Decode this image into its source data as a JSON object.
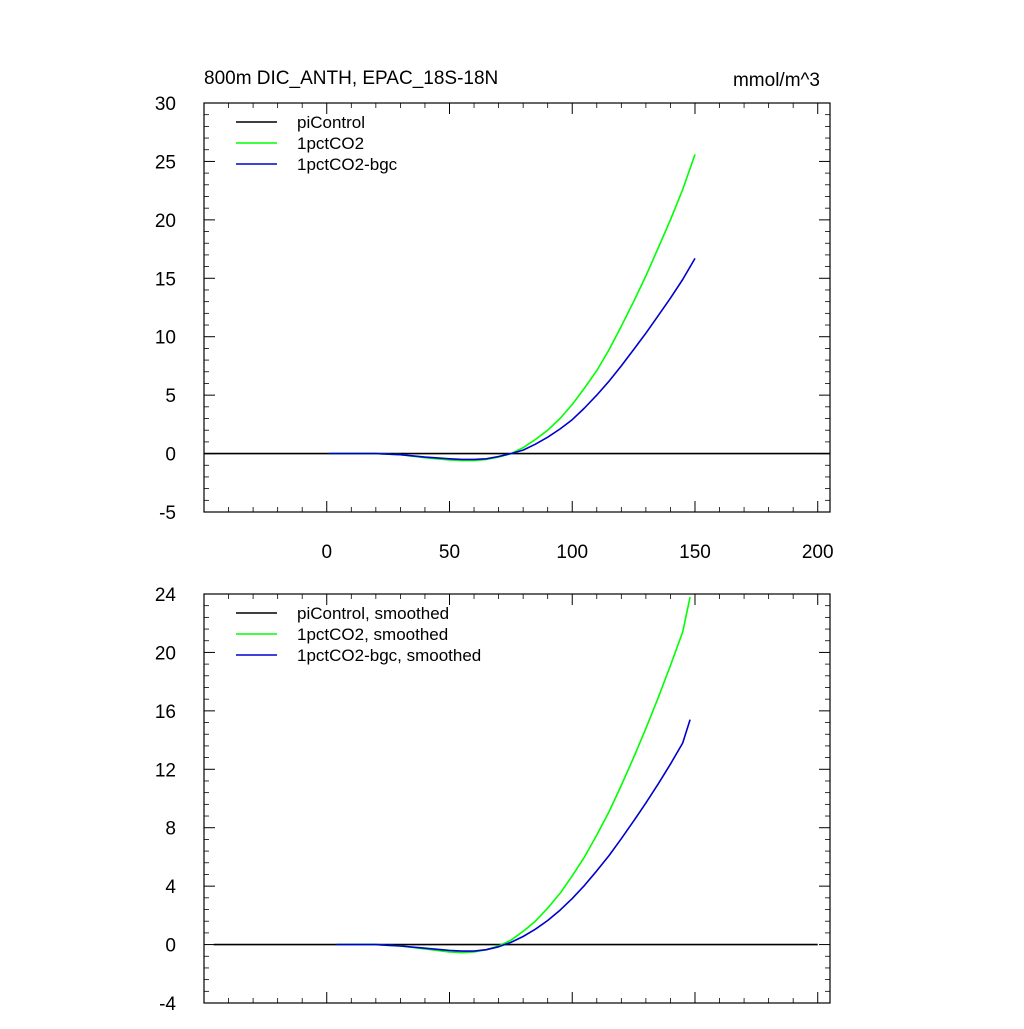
{
  "chart_data": [
    {
      "type": "line",
      "title": "800m DIC_ANTH, EPAC_18S-18N",
      "units": "mmol/m^3",
      "xlim": [
        -50,
        205
      ],
      "ylim": [
        -5,
        30
      ],
      "x_ticks": [
        0,
        50,
        100,
        150,
        200
      ],
      "y_ticks": [
        -5,
        0,
        5,
        10,
        15,
        20,
        25,
        30
      ],
      "x_tick_labels": [
        "0",
        "50",
        "100",
        "150",
        "200"
      ],
      "y_tick_labels": [
        "-5",
        "0",
        "5",
        "10",
        "15",
        "20",
        "25",
        "30"
      ],
      "legend_position": "top-left",
      "series": [
        {
          "name": "piControl",
          "color": "#000000",
          "points": [
            [
              -50,
              0
            ],
            [
              205,
              0
            ]
          ]
        },
        {
          "name": "1pctCO2",
          "color": "#00ff00",
          "points": [
            [
              1,
              0
            ],
            [
              20,
              0
            ],
            [
              30,
              -0.1
            ],
            [
              40,
              -0.35
            ],
            [
              50,
              -0.55
            ],
            [
              55,
              -0.6
            ],
            [
              60,
              -0.6
            ],
            [
              65,
              -0.5
            ],
            [
              70,
              -0.3
            ],
            [
              75,
              0
            ],
            [
              80,
              0.5
            ],
            [
              85,
              1.2
            ],
            [
              90,
              2.0
            ],
            [
              95,
              3.0
            ],
            [
              100,
              4.2
            ],
            [
              105,
              5.6
            ],
            [
              110,
              7.1
            ],
            [
              115,
              8.9
            ],
            [
              120,
              10.9
            ],
            [
              125,
              13.0
            ],
            [
              130,
              15.2
            ],
            [
              135,
              17.6
            ],
            [
              140,
              20.0
            ],
            [
              145,
              22.6
            ],
            [
              150,
              25.6
            ]
          ]
        },
        {
          "name": "1pctCO2-bgc",
          "color": "#0000cd",
          "points": [
            [
              1,
              0
            ],
            [
              20,
              0
            ],
            [
              30,
              -0.1
            ],
            [
              40,
              -0.3
            ],
            [
              50,
              -0.45
            ],
            [
              55,
              -0.5
            ],
            [
              60,
              -0.5
            ],
            [
              65,
              -0.45
            ],
            [
              70,
              -0.25
            ],
            [
              75,
              0
            ],
            [
              80,
              0.3
            ],
            [
              85,
              0.8
            ],
            [
              90,
              1.4
            ],
            [
              95,
              2.1
            ],
            [
              100,
              2.9
            ],
            [
              105,
              3.9
            ],
            [
              110,
              5.0
            ],
            [
              115,
              6.2
            ],
            [
              120,
              7.5
            ],
            [
              125,
              8.9
            ],
            [
              130,
              10.3
            ],
            [
              135,
              11.8
            ],
            [
              140,
              13.3
            ],
            [
              145,
              14.9
            ],
            [
              150,
              16.7
            ]
          ]
        }
      ]
    },
    {
      "type": "line",
      "xlim": [
        -50,
        205
      ],
      "ylim": [
        -4,
        24
      ],
      "x_ticks": [
        0,
        50,
        100,
        150,
        200
      ],
      "y_ticks": [
        -4,
        0,
        4,
        8,
        12,
        16,
        20,
        24
      ],
      "y_tick_labels": [
        "-4",
        "0",
        "4",
        "8",
        "12",
        "16",
        "20",
        "24"
      ],
      "legend_position": "top-left",
      "series": [
        {
          "name": "piControl, smoothed",
          "color": "#000000",
          "points": [
            [
              -46,
              0
            ],
            [
              200,
              0
            ]
          ]
        },
        {
          "name": "1pctCO2, smoothed",
          "color": "#00ff00",
          "points": [
            [
              4,
              0
            ],
            [
              20,
              0
            ],
            [
              30,
              -0.1
            ],
            [
              40,
              -0.3
            ],
            [
              50,
              -0.5
            ],
            [
              55,
              -0.55
            ],
            [
              60,
              -0.5
            ],
            [
              65,
              -0.35
            ],
            [
              70,
              -0.1
            ],
            [
              75,
              0.3
            ],
            [
              80,
              0.9
            ],
            [
              85,
              1.6
            ],
            [
              90,
              2.5
            ],
            [
              95,
              3.5
            ],
            [
              100,
              4.7
            ],
            [
              105,
              6.0
            ],
            [
              110,
              7.5
            ],
            [
              115,
              9.1
            ],
            [
              120,
              10.9
            ],
            [
              125,
              12.8
            ],
            [
              130,
              14.8
            ],
            [
              135,
              16.9
            ],
            [
              140,
              19.1
            ],
            [
              145,
              21.4
            ],
            [
              148,
              23.8
            ]
          ]
        },
        {
          "name": "1pctCO2-bgc, smoothed",
          "color": "#0000cd",
          "points": [
            [
              4,
              0
            ],
            [
              20,
              0
            ],
            [
              30,
              -0.1
            ],
            [
              40,
              -0.25
            ],
            [
              50,
              -0.4
            ],
            [
              55,
              -0.45
            ],
            [
              60,
              -0.45
            ],
            [
              65,
              -0.35
            ],
            [
              70,
              -0.15
            ],
            [
              75,
              0.15
            ],
            [
              80,
              0.55
            ],
            [
              85,
              1.05
            ],
            [
              90,
              1.65
            ],
            [
              95,
              2.35
            ],
            [
              100,
              3.15
            ],
            [
              105,
              4.05
            ],
            [
              110,
              5.05
            ],
            [
              115,
              6.1
            ],
            [
              120,
              7.25
            ],
            [
              125,
              8.45
            ],
            [
              130,
              9.7
            ],
            [
              135,
              11.0
            ],
            [
              140,
              12.35
            ],
            [
              145,
              13.8
            ],
            [
              148,
              15.4
            ]
          ]
        }
      ]
    }
  ]
}
